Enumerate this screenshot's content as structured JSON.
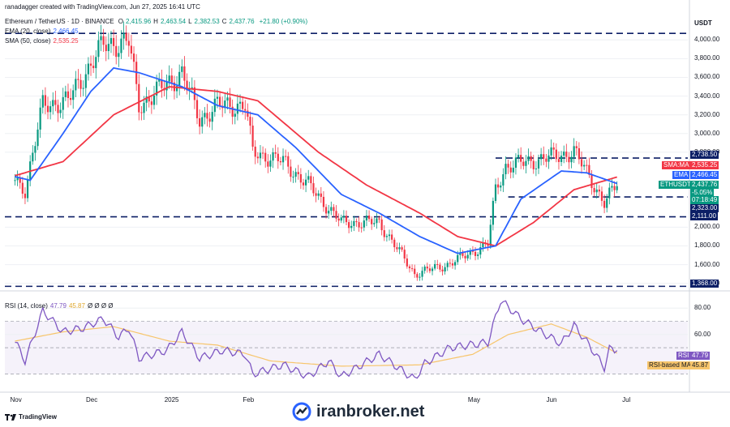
{
  "header": {
    "credit": "ranadagger created with TradingView.com, Jun 27, 2025 16:41 UTC",
    "symbol": "Ethereum / TetherUS · 1D · BINANCE",
    "ohlc": [
      {
        "k": "O",
        "v": "2,415.96"
      },
      {
        "k": "H",
        "v": "2,463.54"
      },
      {
        "k": "L",
        "v": "2,382.53"
      },
      {
        "k": "C",
        "v": "2,437.76"
      },
      {
        "k": "",
        "v": "+21.80 (+0.90%)"
      }
    ],
    "ema_label": "EMA (20, close)",
    "ema_value": "2,466.45",
    "sma_label": "SMA (50, close)",
    "sma_value": "2,535.25",
    "rsi_label": "RSI (14, close)",
    "rsi_value": "47.79",
    "rsi_ma_value": "45.87",
    "rsi_extra": "Ø Ø Ø Ø"
  },
  "currency": "USDT",
  "price_tags": {
    "level_high": "2,738.50",
    "sma_name": "SMA:MA",
    "sma_val": "2,535.25",
    "ema_name": "EMA",
    "ema_val": "2,466.45",
    "sym_name": "ETHUSDT",
    "sym_val": "2,437.76",
    "change": "-5.05%",
    "countdown": "07:18:49",
    "level_mid": "2,323.00",
    "level_low": "2,111.00",
    "level_min": "1,368.00",
    "rsi_name": "RSI",
    "rsi_val": "47.79",
    "rsi_ma_name": "RSI-based MA",
    "rsi_ma_val": "45.87"
  },
  "colors": {
    "up": "#089981",
    "down": "#f23645",
    "ema": "#2962ff",
    "sma": "#f23645",
    "rsi": "#7e57c2",
    "rsi_ma": "#f7c56b",
    "level": "#0c1f66"
  },
  "watermark": "iranbroker.net",
  "logo_text": "TradingView",
  "chart_data": [
    {
      "type": "candlestick",
      "title": "Ethereum / TetherUS · 1D · BINANCE",
      "y_unit": "USDT",
      "ylim": [
        1380,
        4080
      ],
      "y_ticks": [
        {
          "v": 4000,
          "t": "4,000.00"
        },
        {
          "v": 3800,
          "t": "3,800.00"
        },
        {
          "v": 3600,
          "t": "3,600.00"
        },
        {
          "v": 3400,
          "t": "3,400.00"
        },
        {
          "v": 3200,
          "t": "3,200.00"
        },
        {
          "v": 3000,
          "t": "3,000.00"
        },
        {
          "v": 2800,
          "t": "2,800.00"
        },
        {
          "v": 2000,
          "t": "2,000.00"
        },
        {
          "v": 1800,
          "t": "1,800.00"
        },
        {
          "v": 1600,
          "t": "1,600.00"
        },
        {
          "v": 1400,
          "t": "1,400.00"
        }
      ],
      "x_ticks": [
        {
          "d": "2024-11-01",
          "t": "Nov"
        },
        {
          "d": "2024-12-01",
          "t": "Dec"
        },
        {
          "d": "2025-01-01",
          "t": "2025"
        },
        {
          "d": "2025-02-01",
          "t": "Feb"
        },
        {
          "d": "2025-05-01",
          "t": "May"
        },
        {
          "d": "2025-06-01",
          "t": "Jun"
        },
        {
          "d": "2025-07-01",
          "t": "Jul"
        }
      ],
      "levels": [
        {
          "v": 4070,
          "from": "2024-10-28",
          "to": "2025-07-25"
        },
        {
          "v": 2738.5,
          "from": "2025-05-10",
          "to": "2025-07-25"
        },
        {
          "v": 2323,
          "from": "2025-05-15",
          "to": "2025-07-25"
        },
        {
          "v": 2111,
          "from": "2024-10-28",
          "to": "2025-07-25"
        },
        {
          "v": 1368,
          "from": "2024-10-28",
          "to": "2025-07-25"
        }
      ],
      "price_keypoints": [
        {
          "d": "2024-11-01",
          "c": 2500
        },
        {
          "d": "2024-11-05",
          "c": 2400
        },
        {
          "d": "2024-11-12",
          "c": 3300
        },
        {
          "d": "2024-11-22",
          "c": 3350
        },
        {
          "d": "2024-11-30",
          "c": 3700
        },
        {
          "d": "2024-12-06",
          "c": 3950
        },
        {
          "d": "2024-12-16",
          "c": 3980
        },
        {
          "d": "2024-12-20",
          "c": 3300
        },
        {
          "d": "2025-01-06",
          "c": 3650
        },
        {
          "d": "2025-01-13",
          "c": 3150
        },
        {
          "d": "2025-01-20",
          "c": 3300
        },
        {
          "d": "2025-01-31",
          "c": 3300
        },
        {
          "d": "2025-02-03",
          "c": 2800
        },
        {
          "d": "2025-02-15",
          "c": 2700
        },
        {
          "d": "2025-02-25",
          "c": 2450
        },
        {
          "d": "2025-03-10",
          "c": 2050
        },
        {
          "d": "2025-03-25",
          "c": 2050
        },
        {
          "d": "2025-04-08",
          "c": 1500
        },
        {
          "d": "2025-04-21",
          "c": 1600
        },
        {
          "d": "2025-05-07",
          "c": 1820
        },
        {
          "d": "2025-05-10",
          "c": 2400
        },
        {
          "d": "2025-05-14",
          "c": 2650
        },
        {
          "d": "2025-06-10",
          "c": 2800
        },
        {
          "d": "2025-06-16",
          "c": 2550
        },
        {
          "d": "2025-06-22",
          "c": 2250
        },
        {
          "d": "2025-06-26",
          "c": 2416
        },
        {
          "d": "2025-06-27",
          "c": 2437.76
        }
      ],
      "ema_keypoints": [
        {
          "d": "2024-11-01",
          "v": 2540
        },
        {
          "d": "2024-11-07",
          "v": 2500
        },
        {
          "d": "2024-11-20",
          "v": 3000
        },
        {
          "d": "2024-12-01",
          "v": 3450
        },
        {
          "d": "2024-12-10",
          "v": 3700
        },
        {
          "d": "2024-12-20",
          "v": 3650
        },
        {
          "d": "2025-01-06",
          "v": 3500
        },
        {
          "d": "2025-01-20",
          "v": 3300
        },
        {
          "d": "2025-02-05",
          "v": 3200
        },
        {
          "d": "2025-02-20",
          "v": 2850
        },
        {
          "d": "2025-03-10",
          "v": 2350
        },
        {
          "d": "2025-03-25",
          "v": 2150
        },
        {
          "d": "2025-04-10",
          "v": 1900
        },
        {
          "d": "2025-04-25",
          "v": 1720
        },
        {
          "d": "2025-05-10",
          "v": 1800
        },
        {
          "d": "2025-05-20",
          "v": 2300
        },
        {
          "d": "2025-06-05",
          "v": 2600
        },
        {
          "d": "2025-06-15",
          "v": 2580
        },
        {
          "d": "2025-06-27",
          "v": 2466.45
        }
      ],
      "sma_keypoints": [
        {
          "d": "2024-11-01",
          "v": 2550
        },
        {
          "d": "2024-11-20",
          "v": 2700
        },
        {
          "d": "2024-12-10",
          "v": 3200
        },
        {
          "d": "2025-01-01",
          "v": 3500
        },
        {
          "d": "2025-01-20",
          "v": 3450
        },
        {
          "d": "2025-02-05",
          "v": 3350
        },
        {
          "d": "2025-03-01",
          "v": 2800
        },
        {
          "d": "2025-03-20",
          "v": 2450
        },
        {
          "d": "2025-04-10",
          "v": 2150
        },
        {
          "d": "2025-04-25",
          "v": 1900
        },
        {
          "d": "2025-05-10",
          "v": 1800
        },
        {
          "d": "2025-05-25",
          "v": 2050
        },
        {
          "d": "2025-06-10",
          "v": 2400
        },
        {
          "d": "2025-06-27",
          "v": 2535.25
        }
      ]
    },
    {
      "type": "line",
      "title": "RSI (14, close)",
      "ylim": [
        20,
        90
      ],
      "y_ticks": [
        {
          "v": 80,
          "t": "80.00"
        },
        {
          "v": 60,
          "t": "60.00"
        }
      ],
      "band": [
        30,
        70
      ],
      "mid_line": 50,
      "series": [
        {
          "name": "RSI",
          "key": "rsi",
          "values": [
            {
              "d": "2024-11-01",
              "v": 55
            },
            {
              "d": "2024-11-05",
              "v": 40
            },
            {
              "d": "2024-11-12",
              "v": 78
            },
            {
              "d": "2024-11-20",
              "v": 62
            },
            {
              "d": "2024-11-28",
              "v": 65
            },
            {
              "d": "2024-12-06",
              "v": 72
            },
            {
              "d": "2024-12-12",
              "v": 58
            },
            {
              "d": "2024-12-16",
              "v": 65
            },
            {
              "d": "2024-12-20",
              "v": 42
            },
            {
              "d": "2024-12-31",
              "v": 48
            },
            {
              "d": "2025-01-06",
              "v": 62
            },
            {
              "d": "2025-01-13",
              "v": 42
            },
            {
              "d": "2025-01-22",
              "v": 48
            },
            {
              "d": "2025-01-31",
              "v": 45
            },
            {
              "d": "2025-02-03",
              "v": 30
            },
            {
              "d": "2025-02-15",
              "v": 37
            },
            {
              "d": "2025-02-25",
              "v": 28
            },
            {
              "d": "2025-03-05",
              "v": 40
            },
            {
              "d": "2025-03-10",
              "v": 28
            },
            {
              "d": "2025-03-25",
              "v": 45
            },
            {
              "d": "2025-04-08",
              "v": 26
            },
            {
              "d": "2025-04-12",
              "v": 38
            },
            {
              "d": "2025-04-22",
              "v": 50
            },
            {
              "d": "2025-05-07",
              "v": 54
            },
            {
              "d": "2025-05-12",
              "v": 86
            },
            {
              "d": "2025-05-20",
              "v": 72
            },
            {
              "d": "2025-05-28",
              "v": 62
            },
            {
              "d": "2025-06-05",
              "v": 53
            },
            {
              "d": "2025-06-10",
              "v": 67
            },
            {
              "d": "2025-06-16",
              "v": 52
            },
            {
              "d": "2025-06-22",
              "v": 35
            },
            {
              "d": "2025-06-24",
              "v": 49
            },
            {
              "d": "2025-06-27",
              "v": 47.79
            }
          ]
        },
        {
          "name": "RSI-based MA",
          "key": "rsi_ma",
          "values": [
            {
              "d": "2024-11-01",
              "v": 55
            },
            {
              "d": "2024-11-20",
              "v": 62
            },
            {
              "d": "2024-12-10",
              "v": 66
            },
            {
              "d": "2025-01-01",
              "v": 55
            },
            {
              "d": "2025-01-20",
              "v": 52
            },
            {
              "d": "2025-02-10",
              "v": 40
            },
            {
              "d": "2025-03-10",
              "v": 36
            },
            {
              "d": "2025-04-10",
              "v": 37
            },
            {
              "d": "2025-05-01",
              "v": 45
            },
            {
              "d": "2025-05-15",
              "v": 60
            },
            {
              "d": "2025-06-01",
              "v": 68
            },
            {
              "d": "2025-06-15",
              "v": 58
            },
            {
              "d": "2025-06-27",
              "v": 45.87
            }
          ]
        }
      ]
    }
  ]
}
